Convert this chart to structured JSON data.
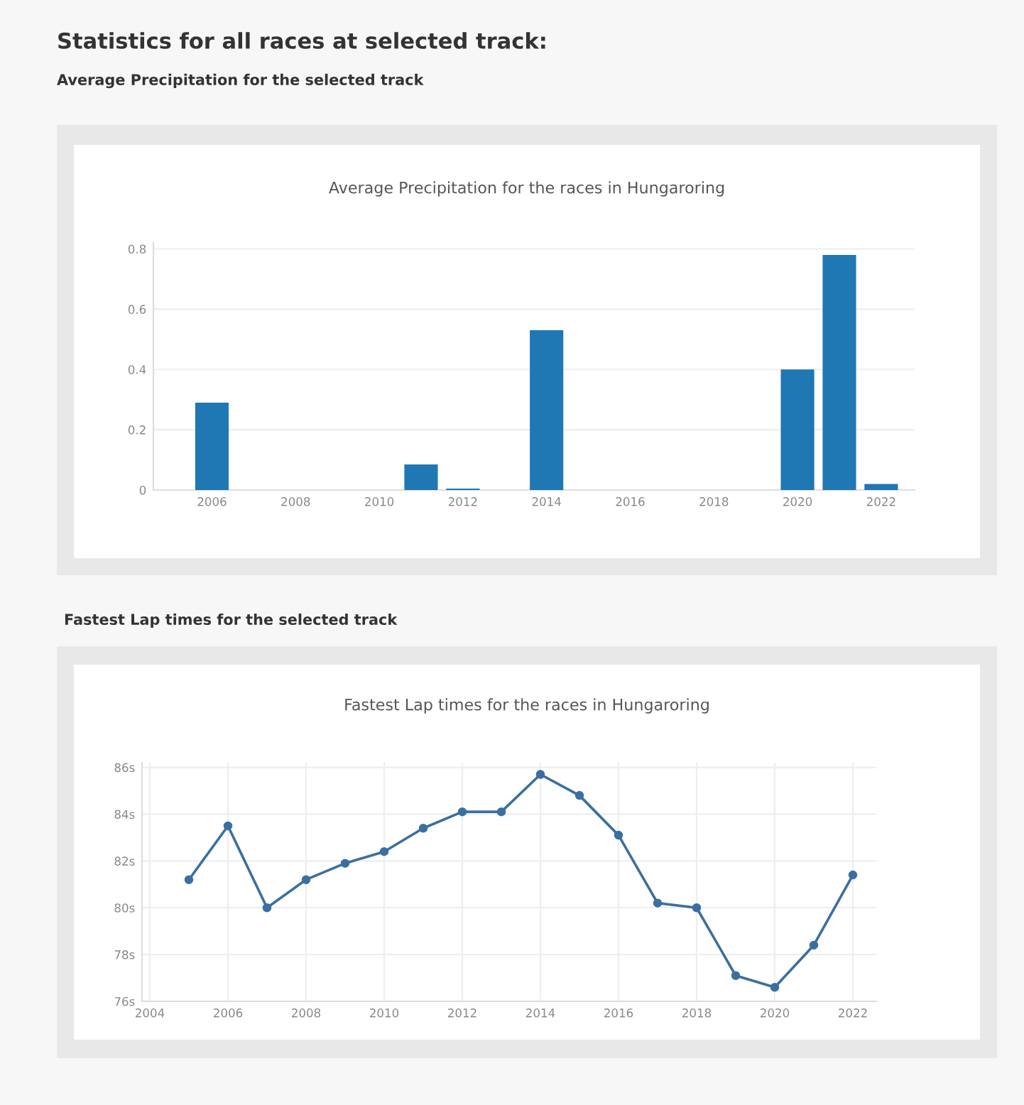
{
  "chart_data": [
    {
      "type": "bar",
      "title": "Average Precipitation for the races in Hungaroring",
      "annotations": [
        "Statistics for all races at selected track:",
        "Average Precipitation for the selected track"
      ],
      "x": [
        2006,
        2011,
        2012,
        2014,
        2020,
        2021,
        2022
      ],
      "values": [
        0.29,
        0.085,
        0.005,
        0.53,
        0.4,
        0.78,
        0.02
      ],
      "color": "#1f77b4",
      "xlim": [
        2004.6,
        2022.8
      ],
      "xticks": [
        2006,
        2008,
        2010,
        2012,
        2014,
        2016,
        2018,
        2020,
        2022
      ],
      "ylim": [
        0,
        0.82
      ],
      "yticks": [
        0,
        0.2,
        0.4,
        0.6,
        0.8
      ],
      "grid": "y"
    },
    {
      "type": "line",
      "title": "Fastest Lap times for the races in Hungaroring",
      "annotations": [
        "Fastest Lap times for the selected track"
      ],
      "x": [
        2005,
        2006,
        2007,
        2008,
        2009,
        2010,
        2011,
        2012,
        2013,
        2014,
        2015,
        2016,
        2017,
        2018,
        2019,
        2020,
        2021,
        2022
      ],
      "values": [
        81.2,
        83.5,
        80.0,
        81.2,
        81.9,
        82.4,
        83.4,
        84.1,
        84.1,
        85.7,
        84.8,
        83.1,
        80.2,
        80.0,
        77.1,
        76.6,
        78.4,
        81.4
      ],
      "color": "#3b6fa0",
      "marker": "circle",
      "line_style": "solid",
      "xlim": [
        2003.8,
        2022.6
      ],
      "xticks": [
        2004,
        2006,
        2008,
        2010,
        2012,
        2014,
        2016,
        2018,
        2020,
        2022
      ],
      "ylim": [
        76,
        86.2
      ],
      "yticks": [
        {
          "value": 76,
          "label": "76s"
        },
        {
          "value": 78,
          "label": "78s"
        },
        {
          "value": 80,
          "label": "80s"
        },
        {
          "value": 82,
          "label": "82s"
        },
        {
          "value": 84,
          "label": "84s"
        },
        {
          "value": 86,
          "label": "86s"
        }
      ],
      "grid": true
    }
  ]
}
